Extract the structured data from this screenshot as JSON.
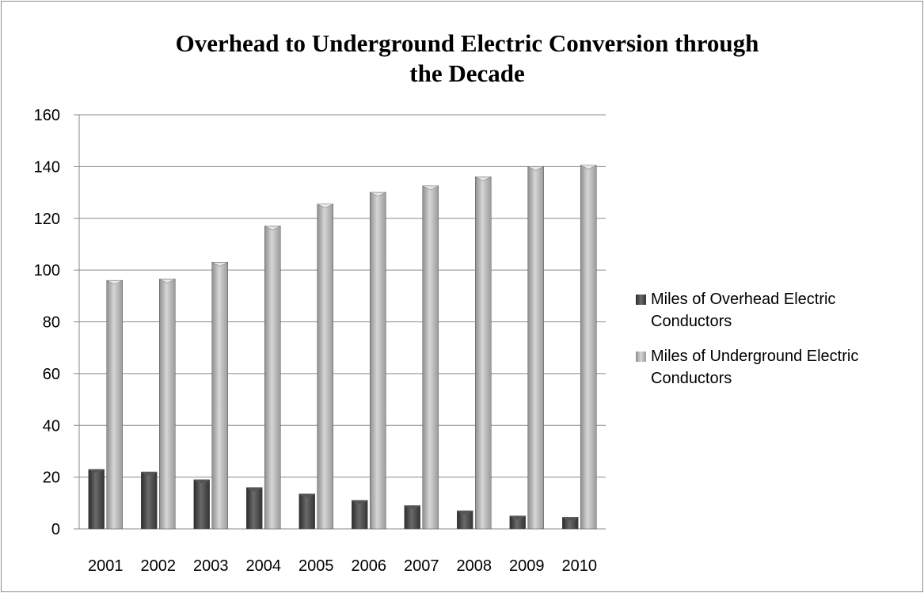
{
  "chart_data": {
    "type": "bar",
    "title_lines": [
      "Overhead to Underground Electric Conversion through",
      "the Decade"
    ],
    "xlabel": "",
    "ylabel": "",
    "categories": [
      "2001",
      "2002",
      "2003",
      "2004",
      "2005",
      "2006",
      "2007",
      "2008",
      "2009",
      "2010"
    ],
    "series": [
      {
        "name": "Miles of Overhead Electric Conductors",
        "legend_lines": [
          "Miles of Overhead Electric",
          "Conductors"
        ],
        "values": [
          23,
          22,
          19,
          16,
          13.5,
          11,
          9,
          7,
          5,
          4.5
        ],
        "color": "#4a4a4a"
      },
      {
        "name": "Miles of Underground Electric Conductors",
        "legend_lines": [
          "Miles of Underground Electric",
          "Conductors"
        ],
        "values": [
          96,
          96.5,
          103,
          117,
          125.5,
          130,
          132.5,
          136,
          140,
          140.5
        ],
        "color": "#b8b8b8"
      }
    ],
    "ylim": [
      0,
      160
    ],
    "yticks": [
      "0",
      "20",
      "40",
      "60",
      "80",
      "100",
      "120",
      "140",
      "160"
    ],
    "grid": true,
    "legend_position": "right"
  }
}
